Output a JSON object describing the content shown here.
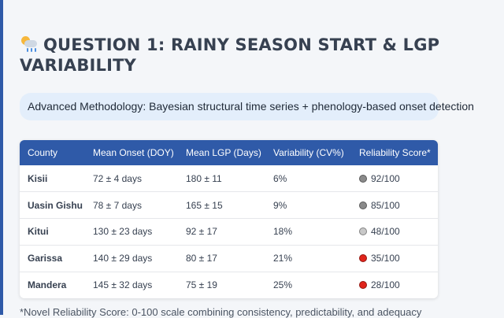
{
  "title": "QUESTION 1: RAINY SEASON START & LGP VARIABILITY",
  "title_icon": "sun-behind-rain-cloud-icon",
  "methodology": "Advanced Methodology: Bayesian structural time series + phenology-based onset detection",
  "table": {
    "headers": [
      "County",
      "Mean Onset (DOY)",
      "Mean LGP (Days)",
      "Variability (CV%)",
      "Reliability Score*"
    ],
    "rows": [
      {
        "county": "Kisii",
        "onset": "72 ± 4 days",
        "lgp": "180 ± 11",
        "cv": "6%",
        "score": "92/100",
        "dot_color": "#8a8a8a"
      },
      {
        "county": "Uasin Gishu",
        "onset": "78 ± 7 days",
        "lgp": "165 ± 15",
        "cv": "9%",
        "score": "85/100",
        "dot_color": "#8a8a8a"
      },
      {
        "county": "Kitui",
        "onset": "130 ± 23 days",
        "lgp": "92 ± 17",
        "cv": "18%",
        "score": "48/100",
        "dot_color": "#c8c8c8"
      },
      {
        "county": "Garissa",
        "onset": "140 ± 29 days",
        "lgp": "80 ± 17",
        "cv": "21%",
        "score": "35/100",
        "dot_color": "#e0241b"
      },
      {
        "county": "Mandera",
        "onset": "145 ± 32 days",
        "lgp": "75 ± 19",
        "cv": "25%",
        "score": "28/100",
        "dot_color": "#e0241b"
      }
    ]
  },
  "footnote": "*Novel Reliability Score: 0-100 scale combining consistency, predictability, and adequacy",
  "colors": {
    "header_bg": "#2f5aa8",
    "accent": "#2f5aa8",
    "method_bg": "#e3eefb"
  }
}
